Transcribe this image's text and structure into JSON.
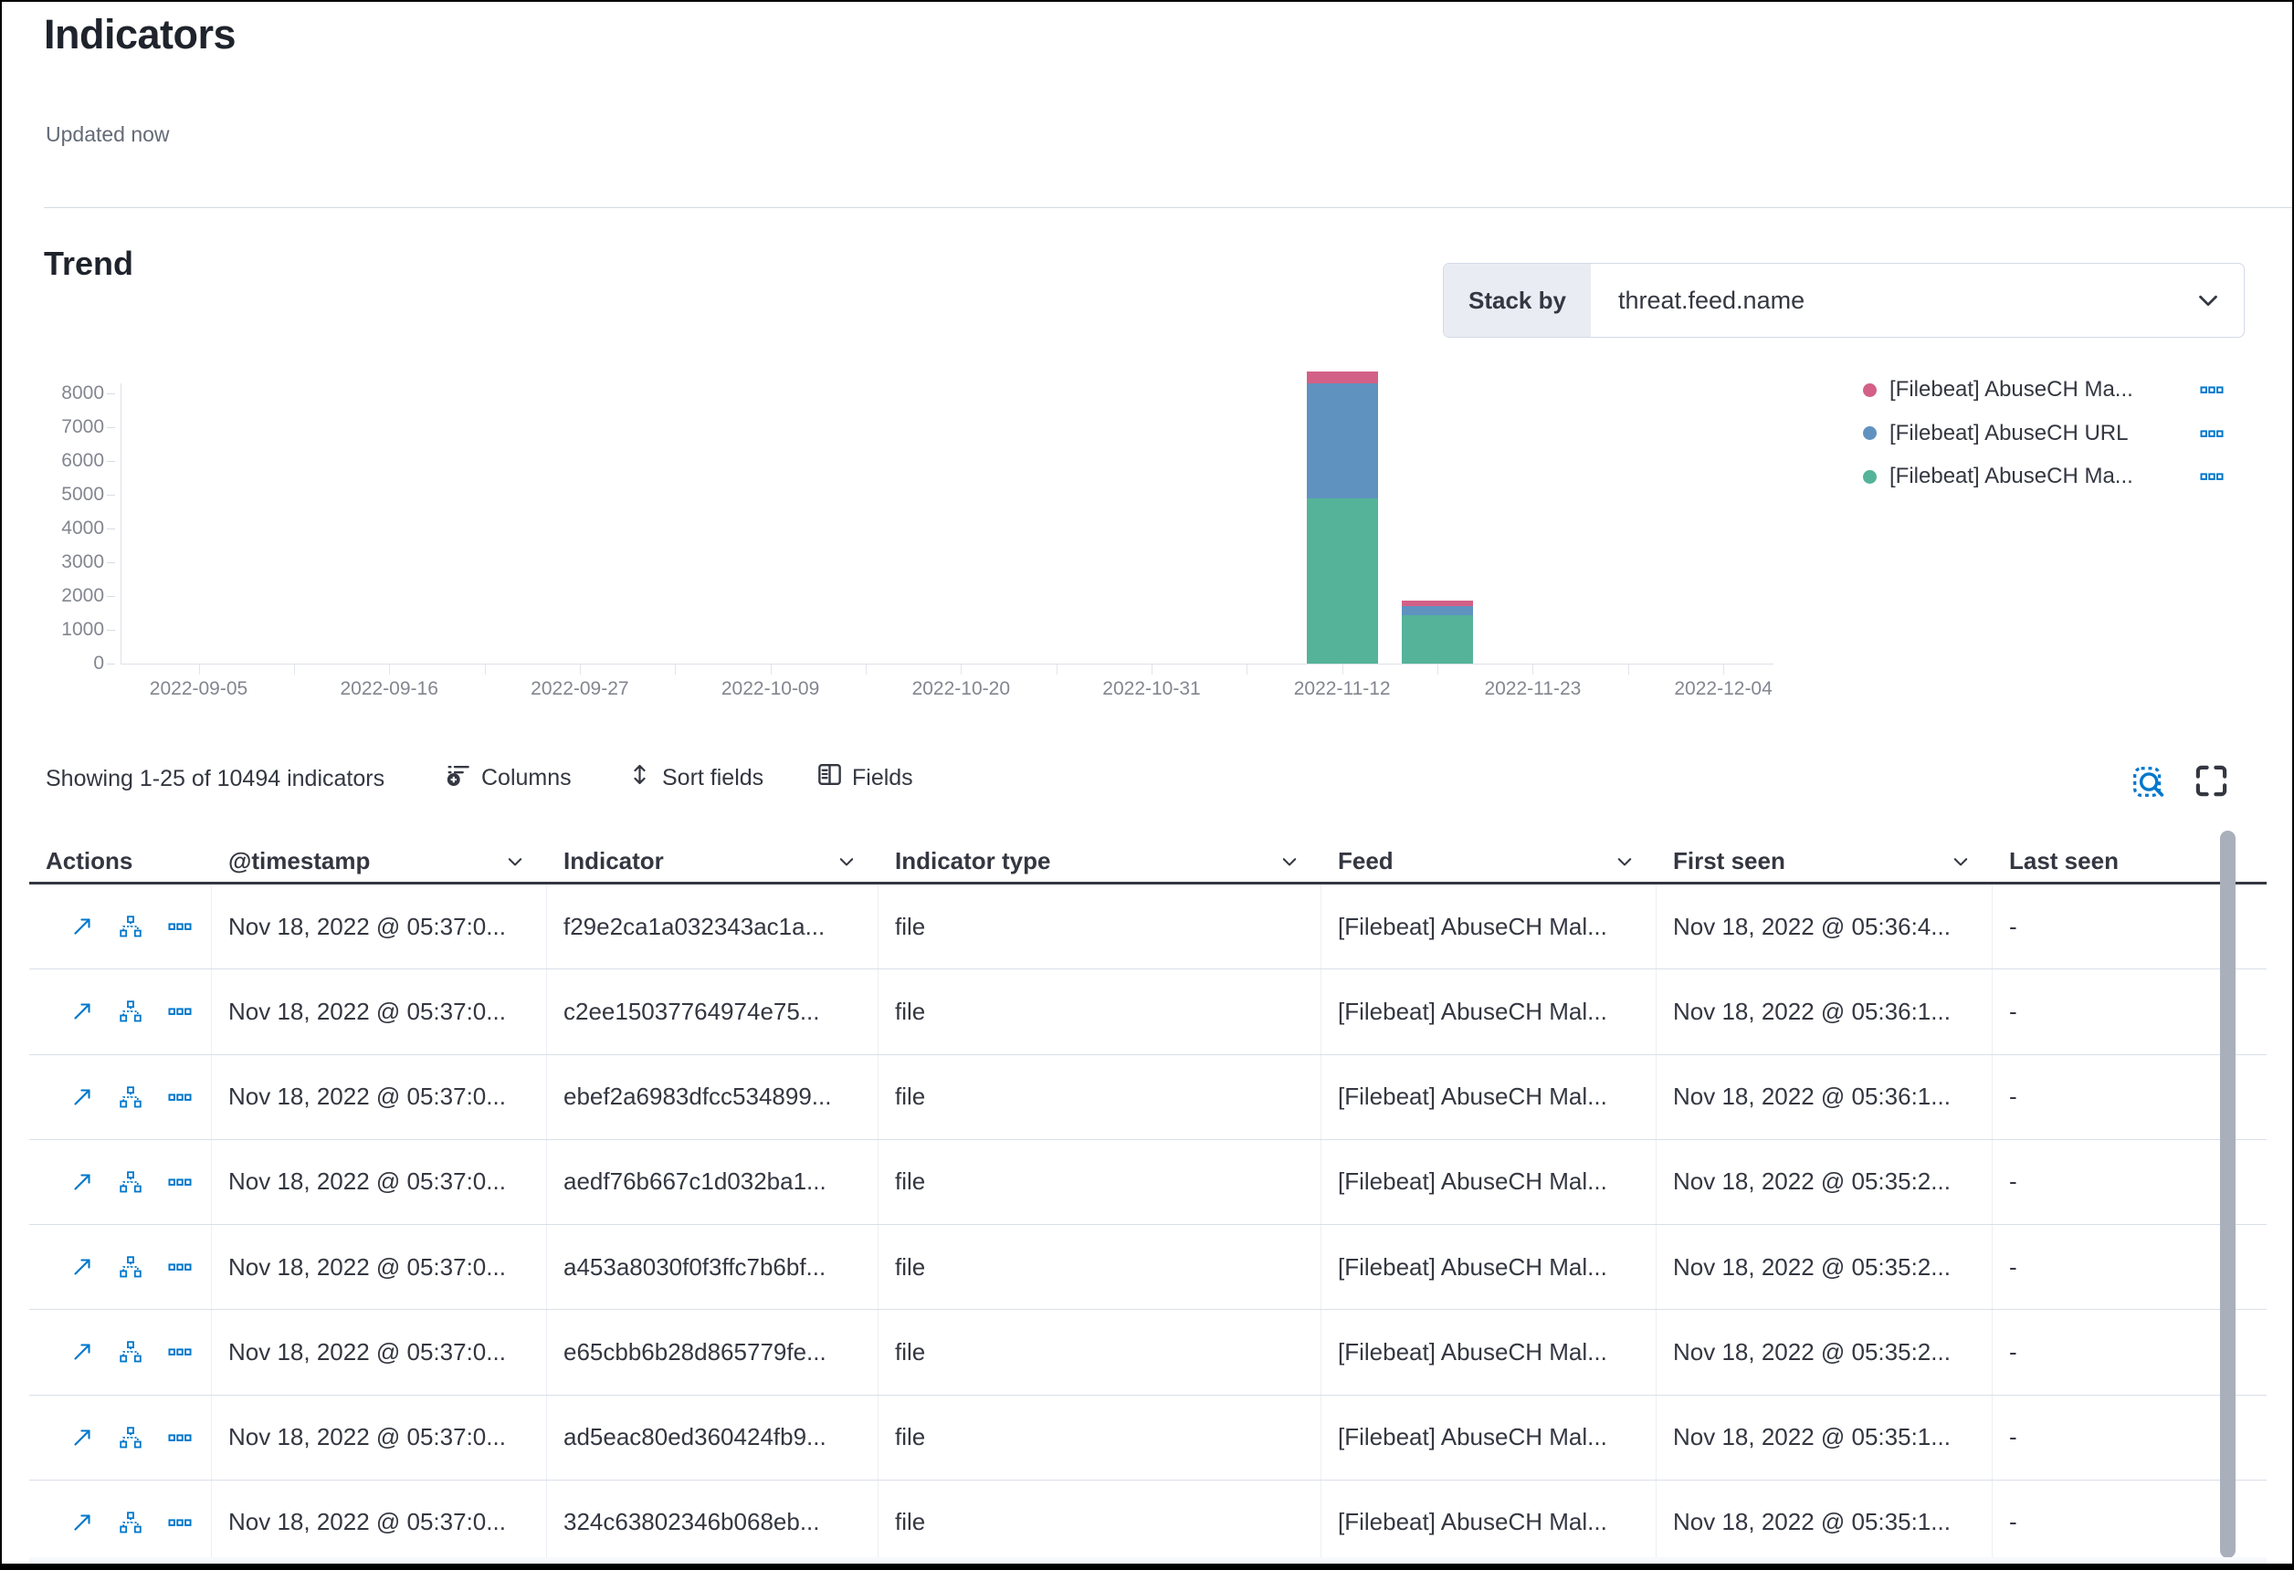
{
  "header": {
    "title": "Indicators",
    "subtitle": "Updated now"
  },
  "trend": {
    "title": "Trend",
    "stack_by_label": "Stack by",
    "stack_by_value": "threat.feed.name",
    "legend": [
      {
        "label": "[Filebeat] AbuseCH Ma...",
        "color": "#d36086"
      },
      {
        "label": "[Filebeat] AbuseCH URL",
        "color": "#6092c0"
      },
      {
        "label": "[Filebeat] AbuseCH Ma...",
        "color": "#54b399"
      }
    ]
  },
  "chart_data": {
    "type": "bar",
    "stacked": true,
    "title": "Trend",
    "x_tick_labels": [
      "2022-09-05",
      "2022-09-16",
      "2022-09-27",
      "2022-10-09",
      "2022-10-20",
      "2022-10-31",
      "2022-11-12",
      "2022-11-23",
      "2022-12-04"
    ],
    "x": [
      "2022-11-12",
      "2022-11-18"
    ],
    "series": [
      {
        "name": "[Filebeat] AbuseCH Ma...",
        "color": "#d36086",
        "values": [
          350,
          160
        ]
      },
      {
        "name": "[Filebeat] AbuseCH URL",
        "color": "#6092c0",
        "values": [
          3400,
          270
        ]
      },
      {
        "name": "[Filebeat] AbuseCH Ma...",
        "color": "#54b399",
        "values": [
          4900,
          1430
        ]
      }
    ],
    "ylim": [
      0,
      8000
    ],
    "y_tick_step": 1000,
    "grid": false,
    "legend_position": "right"
  },
  "toolbar": {
    "summary": "Showing 1-25 of 10494 indicators",
    "columns_label": "Columns",
    "sort_label": "Sort fields",
    "fields_label": "Fields"
  },
  "table": {
    "columns": [
      {
        "label": "Actions",
        "sortable": false
      },
      {
        "label": "@timestamp",
        "sortable": true
      },
      {
        "label": "Indicator",
        "sortable": true
      },
      {
        "label": "Indicator type",
        "sortable": true
      },
      {
        "label": "Feed",
        "sortable": true
      },
      {
        "label": "First seen",
        "sortable": true
      },
      {
        "label": "Last seen",
        "sortable": false
      }
    ],
    "rows": [
      {
        "timestamp": "Nov 18, 2022 @ 05:37:0...",
        "indicator": "f29e2ca1a032343ac1a...",
        "type": "file",
        "feed": "[Filebeat] AbuseCH Mal...",
        "first_seen": "Nov 18, 2022 @ 05:36:4...",
        "last_seen": "-"
      },
      {
        "timestamp": "Nov 18, 2022 @ 05:37:0...",
        "indicator": "c2ee15037764974e75...",
        "type": "file",
        "feed": "[Filebeat] AbuseCH Mal...",
        "first_seen": "Nov 18, 2022 @ 05:36:1...",
        "last_seen": "-"
      },
      {
        "timestamp": "Nov 18, 2022 @ 05:37:0...",
        "indicator": "ebef2a6983dfcc534899...",
        "type": "file",
        "feed": "[Filebeat] AbuseCH Mal...",
        "first_seen": "Nov 18, 2022 @ 05:36:1...",
        "last_seen": "-"
      },
      {
        "timestamp": "Nov 18, 2022 @ 05:37:0...",
        "indicator": "aedf76b667c1d032ba1...",
        "type": "file",
        "feed": "[Filebeat] AbuseCH Mal...",
        "first_seen": "Nov 18, 2022 @ 05:35:2...",
        "last_seen": "-"
      },
      {
        "timestamp": "Nov 18, 2022 @ 05:37:0...",
        "indicator": "a453a8030f0f3ffc7b6bf...",
        "type": "file",
        "feed": "[Filebeat] AbuseCH Mal...",
        "first_seen": "Nov 18, 2022 @ 05:35:2...",
        "last_seen": "-"
      },
      {
        "timestamp": "Nov 18, 2022 @ 05:37:0...",
        "indicator": "e65cbb6b28d865779fe...",
        "type": "file",
        "feed": "[Filebeat] AbuseCH Mal...",
        "first_seen": "Nov 18, 2022 @ 05:35:2...",
        "last_seen": "-"
      },
      {
        "timestamp": "Nov 18, 2022 @ 05:37:0...",
        "indicator": "ad5eac80ed360424fb9...",
        "type": "file",
        "feed": "[Filebeat] AbuseCH Mal...",
        "first_seen": "Nov 18, 2022 @ 05:35:1...",
        "last_seen": "-"
      },
      {
        "timestamp": "Nov 18, 2022 @ 05:37:0...",
        "indicator": "324c63802346b068eb...",
        "type": "file",
        "feed": "[Filebeat] AbuseCH Mal...",
        "first_seen": "Nov 18, 2022 @ 05:35:1...",
        "last_seen": "-"
      }
    ]
  }
}
